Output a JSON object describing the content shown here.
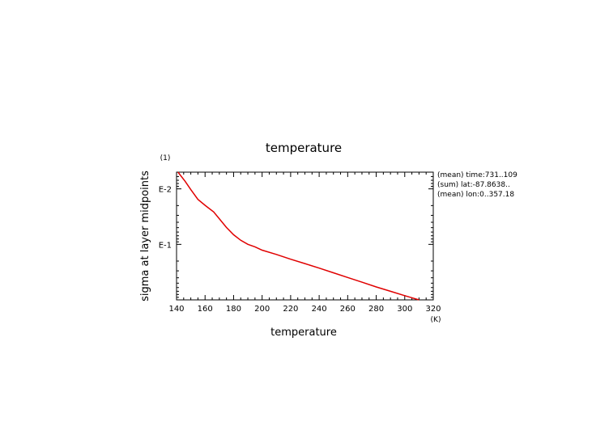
{
  "chart_data": {
    "type": "line",
    "title": "temperature",
    "xlabel": "temperature",
    "ylabel": "sigma at layer midpoints",
    "x_unit": "(K)",
    "y_unit": "(1)",
    "xlim": [
      140,
      320
    ],
    "x_ticks": [
      "140",
      "160",
      "180",
      "200",
      "220",
      "240",
      "260",
      "280",
      "300",
      "320"
    ],
    "y_scale": "log",
    "ylim": [
      0.005,
      1
    ],
    "y_inverted": true,
    "y_ticks": [
      {
        "value": 0.01,
        "label": "E-2"
      },
      {
        "value": 0.1,
        "label": "E-1"
      }
    ],
    "grid": false,
    "annotations": [
      "(mean) time:731..109",
      "(sum) lat:-87.8638..",
      "(mean) lon:0..357.18"
    ],
    "series": [
      {
        "color": "#e00000",
        "x": [
          141,
          146,
          150,
          155,
          160,
          166,
          170,
          175,
          180,
          185,
          190,
          195,
          200,
          210,
          220,
          230,
          240,
          250,
          260,
          270,
          280,
          290,
          300,
          310
        ],
        "y": [
          0.005,
          0.0073,
          0.0103,
          0.0155,
          0.0198,
          0.026,
          0.0345,
          0.0495,
          0.067,
          0.0845,
          0.1,
          0.111,
          0.127,
          0.152,
          0.185,
          0.222,
          0.268,
          0.325,
          0.395,
          0.48,
          0.585,
          0.7,
          0.84,
          1.0
        ]
      }
    ]
  }
}
